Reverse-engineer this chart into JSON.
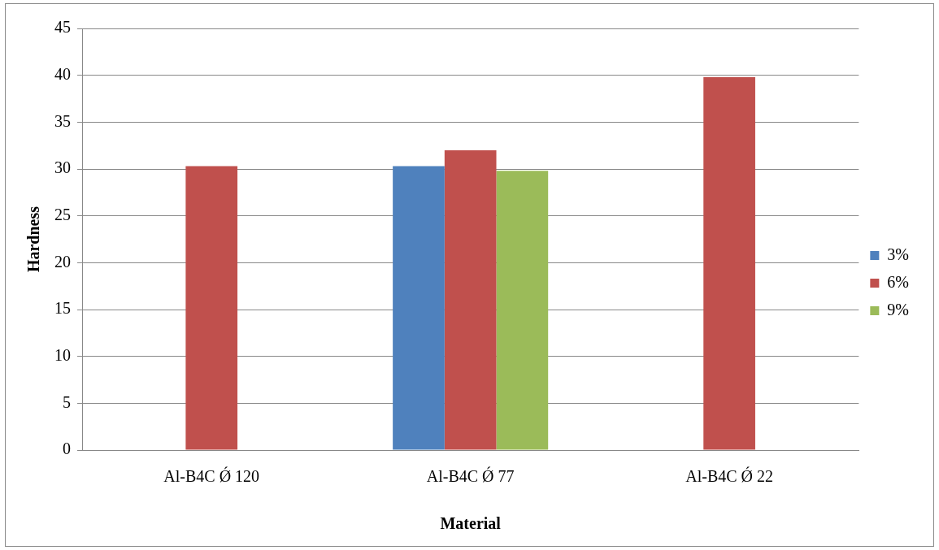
{
  "chart_data": {
    "type": "bar",
    "xlabel": "Material",
    "ylabel": "Hardness",
    "categories": [
      "Al-B4C Ǿ 120",
      "Al-B4C Ǿ 77",
      "Al-B4C Ǿ 22"
    ],
    "series": [
      {
        "name": "3%",
        "color": "#4f81bd",
        "values": [
          null,
          30.3,
          null
        ]
      },
      {
        "name": "6%",
        "color": "#c0504d",
        "values": [
          30.3,
          32,
          39.8
        ]
      },
      {
        "name": "9%",
        "color": "#9bbb59",
        "values": [
          null,
          29.8,
          null
        ]
      }
    ],
    "ylim": [
      0,
      45
    ],
    "yticks": [
      0,
      5,
      10,
      15,
      20,
      25,
      30,
      35,
      40,
      45
    ],
    "grid": "y",
    "legend": "right"
  }
}
